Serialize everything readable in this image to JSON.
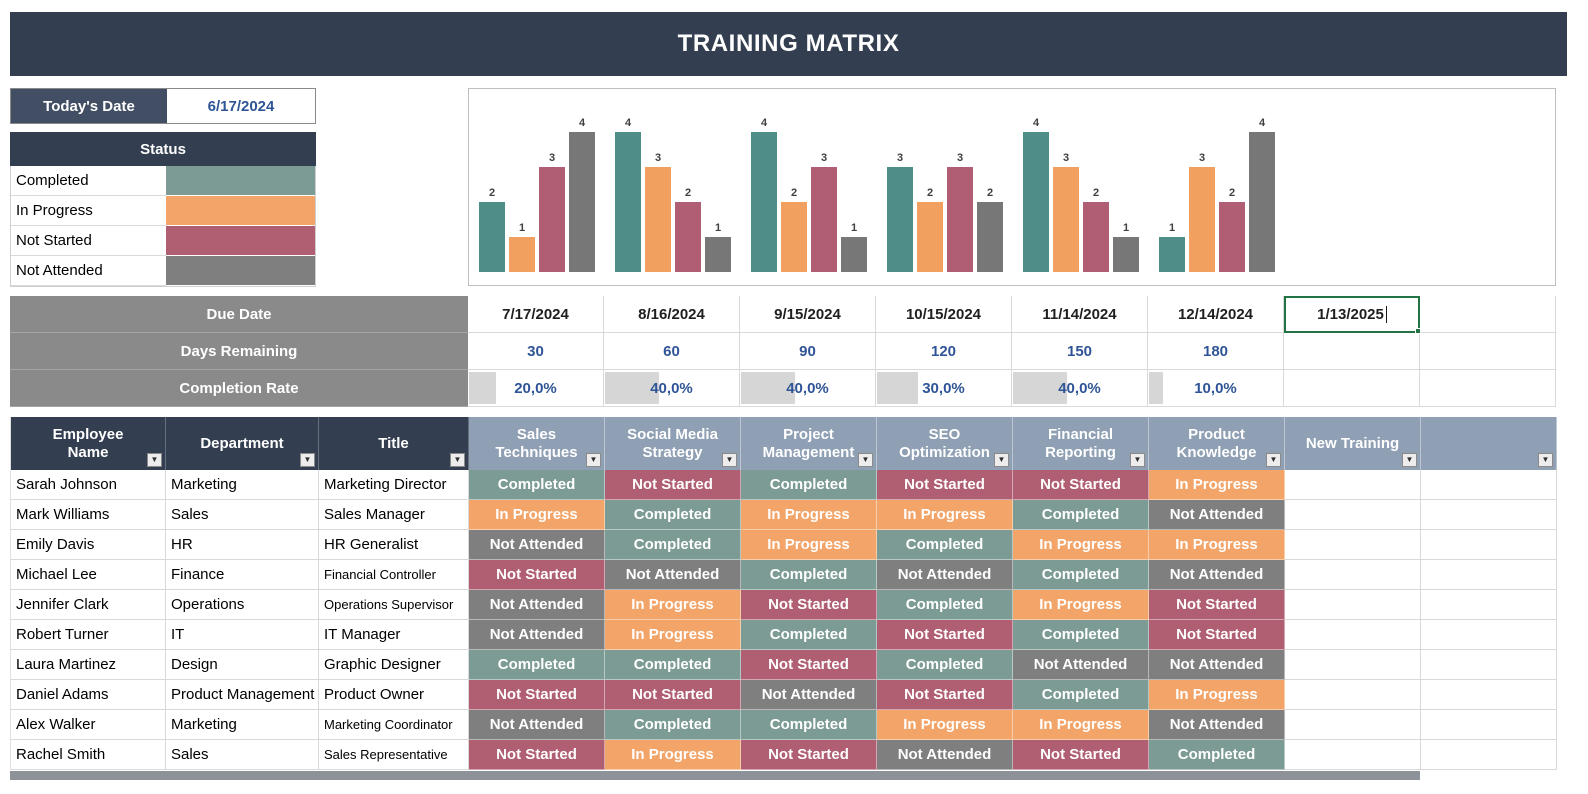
{
  "app": {
    "title": "TRAINING MATRIX"
  },
  "today": {
    "label": "Today's Date",
    "value": "6/17/2024"
  },
  "status_legend": {
    "header": "Status",
    "items": [
      {
        "label": "Completed"
      },
      {
        "label": "In Progress"
      },
      {
        "label": "Not Started"
      },
      {
        "label": "Not Attended"
      }
    ]
  },
  "status_colors": {
    "Completed": "#7d9b95",
    "In Progress": "#f2a469",
    "Not Started": "#b05e72",
    "Not Attended": "#7f7f7f"
  },
  "chart_data": {
    "type": "bar",
    "title": "",
    "categories": [
      "Sales Techniques",
      "Social Media Strategy",
      "Project Management",
      "SEO Optimization",
      "Financial Reporting",
      "Product Knowledge"
    ],
    "series": [
      {
        "name": "Completed",
        "color": "#4f8d89",
        "values": [
          2,
          4,
          4,
          3,
          4,
          1
        ]
      },
      {
        "name": "In Progress",
        "color": "#f2a05f",
        "values": [
          1,
          3,
          2,
          2,
          3,
          3
        ]
      },
      {
        "name": "Not Started",
        "color": "#af5e73",
        "values": [
          3,
          2,
          3,
          3,
          2,
          2
        ]
      },
      {
        "name": "Not Attended",
        "color": "#777777",
        "values": [
          4,
          1,
          1,
          2,
          1,
          4
        ]
      }
    ],
    "ylim": [
      0,
      4
    ],
    "grid": false,
    "legend_position": "none",
    "value_labels": true
  },
  "schedule": {
    "due_date": {
      "label": "Due Date",
      "values": [
        "7/17/2024",
        "8/16/2024",
        "9/15/2024",
        "10/15/2024",
        "11/14/2024",
        "12/14/2024",
        "1/13/2025",
        ""
      ]
    },
    "days_remaining": {
      "label": "Days Remaining",
      "values": [
        "30",
        "60",
        "90",
        "120",
        "150",
        "180",
        "",
        ""
      ]
    },
    "completion_rate": {
      "label": "Completion Rate",
      "values": [
        "20,0%",
        "40,0%",
        "40,0%",
        "30,0%",
        "40,0%",
        "10,0%",
        "",
        ""
      ],
      "bar_percents": [
        20,
        40,
        40,
        30,
        40,
        10,
        0,
        0
      ]
    },
    "active_cell": {
      "row": "due_date",
      "column_index": 6,
      "value": "1/13/2025",
      "editing": true
    }
  },
  "table": {
    "headers": [
      {
        "lines": [
          "Employee",
          "Name"
        ],
        "dark": true
      },
      {
        "lines": [
          "Department"
        ],
        "dark": true
      },
      {
        "lines": [
          "Title"
        ],
        "dark": true
      },
      {
        "lines": [
          "Sales",
          "Techniques"
        ]
      },
      {
        "lines": [
          "Social Media",
          "Strategy"
        ]
      },
      {
        "lines": [
          "Project",
          "Management"
        ]
      },
      {
        "lines": [
          "SEO",
          "Optimization"
        ]
      },
      {
        "lines": [
          "Financial",
          "Reporting"
        ]
      },
      {
        "lines": [
          "Product",
          "Knowledge"
        ]
      },
      {
        "lines": [
          "New Training"
        ]
      },
      {
        "lines": [
          ""
        ]
      }
    ],
    "rows": [
      {
        "name": "Sarah Johnson",
        "department": "Marketing",
        "title": "Marketing Director",
        "statuses": [
          "Completed",
          "Not Started",
          "Completed",
          "Not Started",
          "Not Started",
          "In Progress"
        ]
      },
      {
        "name": "Mark Williams",
        "department": "Sales",
        "title": "Sales Manager",
        "statuses": [
          "In Progress",
          "Completed",
          "In Progress",
          "In Progress",
          "Completed",
          "Not Attended"
        ]
      },
      {
        "name": "Emily Davis",
        "department": "HR",
        "title": "HR Generalist",
        "statuses": [
          "Not Attended",
          "Completed",
          "In Progress",
          "Completed",
          "In Progress",
          "In Progress"
        ]
      },
      {
        "name": "Michael Lee",
        "department": "Finance",
        "title": "Financial Controller",
        "statuses": [
          "Not Started",
          "Not Attended",
          "Completed",
          "Not Attended",
          "Completed",
          "Not Attended"
        ]
      },
      {
        "name": "Jennifer Clark",
        "department": "Operations",
        "title": "Operations Supervisor",
        "statuses": [
          "Not Attended",
          "In Progress",
          "Not Started",
          "Completed",
          "In Progress",
          "Not Started"
        ]
      },
      {
        "name": "Robert Turner",
        "department": "IT",
        "title": "IT Manager",
        "statuses": [
          "Not Attended",
          "In Progress",
          "Completed",
          "Not Started",
          "Completed",
          "Not Started"
        ]
      },
      {
        "name": "Laura Martinez",
        "department": "Design",
        "title": "Graphic Designer",
        "statuses": [
          "Completed",
          "Completed",
          "Not Started",
          "Completed",
          "Not Attended",
          "Not Attended"
        ]
      },
      {
        "name": "Daniel Adams",
        "department": "Product Management",
        "title": "Product Owner",
        "statuses": [
          "Not Started",
          "Not Started",
          "Not Attended",
          "Not Started",
          "Completed",
          "In Progress"
        ]
      },
      {
        "name": "Alex Walker",
        "department": "Marketing",
        "title": "Marketing Coordinator",
        "statuses": [
          "Not Attended",
          "Completed",
          "Completed",
          "In Progress",
          "In Progress",
          "Not Attended"
        ]
      },
      {
        "name": "Rachel Smith",
        "department": "Sales",
        "title": "Sales Representative",
        "statuses": [
          "Not Started",
          "In Progress",
          "Not Started",
          "Not Attended",
          "Not Started",
          "Completed"
        ]
      }
    ]
  },
  "ui": {
    "filter_icon": "▼",
    "accent_green": "#217346",
    "header_dark": "#333f50",
    "header_bluegray": "#8fa0b4",
    "label_gray": "#8a8a8a",
    "value_blue": "#2f5597"
  }
}
